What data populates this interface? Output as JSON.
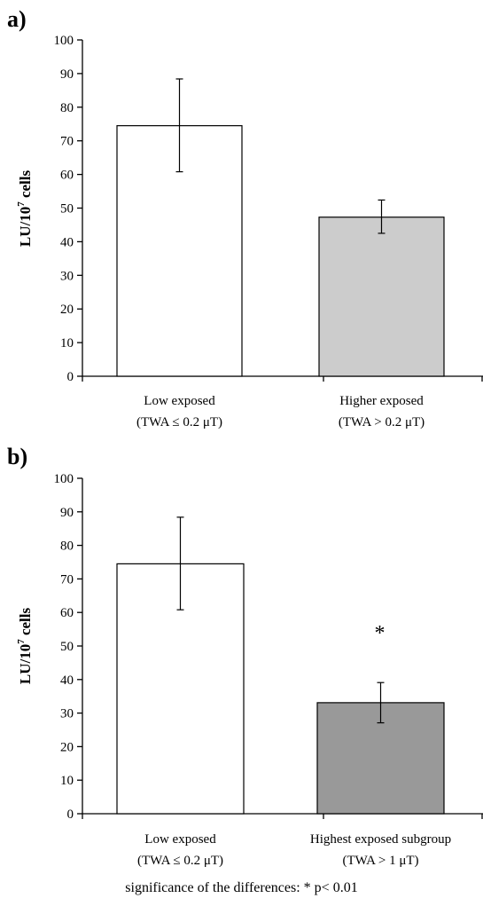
{
  "chart_data": [
    {
      "type": "bar",
      "panel_label": "a)",
      "ylabel_main": "LU/10",
      "ylabel_sup": "7",
      "ylabel_tail": " cells",
      "ylim": [
        0,
        100
      ],
      "yticks": [
        0,
        10,
        20,
        30,
        40,
        50,
        60,
        70,
        80,
        90,
        100
      ],
      "categories": [
        {
          "line1": "Low exposed",
          "line2": "(TWA ≤ 0.2 μT)"
        },
        {
          "line1": "Higher exposed",
          "line2": "(TWA > 0.2 μT)"
        }
      ],
      "values": [
        74.5,
        47.3
      ],
      "error_low": [
        60.8,
        42.5
      ],
      "error_high": [
        88.4,
        52.4
      ],
      "bar_colors": [
        "#ffffff",
        "#cccccc"
      ],
      "annotations": [
        "",
        ""
      ],
      "grid": false
    },
    {
      "type": "bar",
      "panel_label": "b)",
      "ylabel_main": "LU/10",
      "ylabel_sup": "7",
      "ylabel_tail": " cells",
      "ylim": [
        0,
        100
      ],
      "yticks": [
        0,
        10,
        20,
        30,
        40,
        50,
        60,
        70,
        80,
        90,
        100
      ],
      "categories": [
        {
          "line1": "Low exposed",
          "line2": "(TWA ≤ 0.2 μT)"
        },
        {
          "line1": "Highest exposed subgroup",
          "line2": "(TWA > 1 μT)"
        }
      ],
      "values": [
        74.5,
        33.1
      ],
      "error_low": [
        60.8,
        27.1
      ],
      "error_high": [
        88.4,
        39.1
      ],
      "bar_colors": [
        "#ffffff",
        "#999999"
      ],
      "annotations": [
        "",
        "*"
      ],
      "grid": false
    }
  ],
  "footnote": "significance of the differences: * p< 0.01"
}
